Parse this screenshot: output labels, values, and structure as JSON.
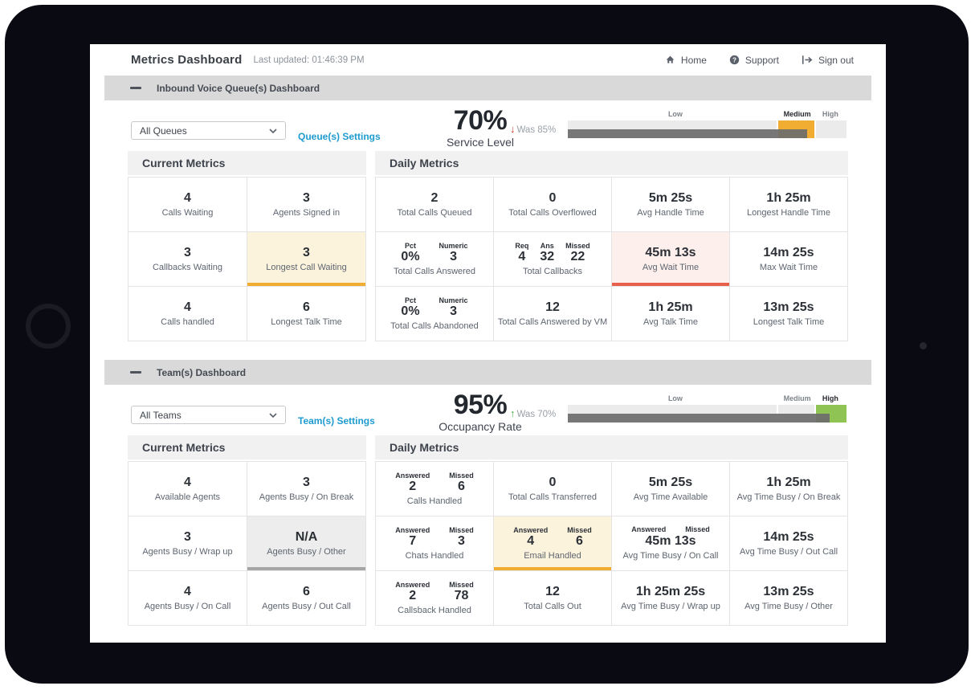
{
  "header": {
    "title": "Metrics Dashboard",
    "last_updated": "Last updated: 01:46:39 PM",
    "nav": [
      {
        "label": "Home",
        "icon": "home-icon"
      },
      {
        "label": "Support",
        "icon": "support-icon"
      },
      {
        "label": "Sign out",
        "icon": "sign-out-icon"
      }
    ]
  },
  "colors": {
    "accent_blue": "#1d9bd1",
    "amber": "#f0ad32",
    "amber_bg": "#fcf3dd",
    "red": "#e8604c",
    "red_bg": "#fdefec",
    "green": "#8fc353",
    "gray_hl": "#a6a6a6",
    "gray_bg": "#ededed",
    "gauge_bar": "#6c6c6c",
    "trend_down": "#d0402e",
    "trend_up": "#4aa546"
  },
  "sections": [
    {
      "id": "queues",
      "title": "Inbound Voice Queue(s) Dashboard",
      "selector_value": "All Queues",
      "settings_link": "Queue(s) Settings",
      "kpi": {
        "value": "70%",
        "direction": "down",
        "was": "Was 85%",
        "label": "Service Level"
      },
      "gauge": {
        "zones": [
          {
            "label": "Low",
            "width_pct": 75.8
          },
          {
            "label": "Medium",
            "width_pct": 13.2
          },
          {
            "label": "High",
            "width_pct": 11
          }
        ],
        "active_zone": "Medium",
        "active_color": "#f0ad32",
        "label_positions_pct": [
          38.6,
          82.3,
          94.2
        ],
        "progress_pct": 86
      },
      "current_metrics": {
        "title": "Current Metrics",
        "cells": [
          {
            "value": "4",
            "label": "Calls Waiting"
          },
          {
            "value": "3",
            "label": "Agents Signed in"
          },
          {
            "value": "3",
            "label": "Callbacks Waiting"
          },
          {
            "value": "3",
            "label": "Longest Call Waiting",
            "highlight": "amber"
          },
          {
            "value": "4",
            "label": "Calls handled"
          },
          {
            "value": "6",
            "label": "Longest Talk Time"
          }
        ]
      },
      "daily_metrics": {
        "title": "Daily Metrics",
        "cells": [
          {
            "value": "2",
            "label": "Total Calls Queued"
          },
          {
            "value": "0",
            "label": "Total Calls Overflowed"
          },
          {
            "value": "5m 25s",
            "label": "Avg Handle Time"
          },
          {
            "value": "1h 25m",
            "label": "Longest Handle Time"
          },
          {
            "pairs": [
              {
                "k": "Pct",
                "v": "0%"
              },
              {
                "k": "Numeric",
                "v": "3"
              }
            ],
            "label": "Total Calls Answered"
          },
          {
            "pairs": [
              {
                "k": "Req",
                "v": "4"
              },
              {
                "k": "Ans",
                "v": "32"
              },
              {
                "k": "Missed",
                "v": "22"
              }
            ],
            "label": "Total Callbacks"
          },
          {
            "value": "45m 13s",
            "label": "Avg Wait Time",
            "highlight": "red"
          },
          {
            "value": "14m 25s",
            "label": "Max Wait Time"
          },
          {
            "pairs": [
              {
                "k": "Pct",
                "v": "0%"
              },
              {
                "k": "Numeric",
                "v": "3"
              }
            ],
            "label": "Total Calls Abandoned"
          },
          {
            "value": "12",
            "label": "Total Calls Answered by VM"
          },
          {
            "value": "1h 25m",
            "label": "Avg Talk Time"
          },
          {
            "value": "13m 25s",
            "label": "Longest Talk Time"
          }
        ]
      }
    },
    {
      "id": "teams",
      "title": "Team(s) Dashboard",
      "selector_value": "All Teams",
      "settings_link": "Team(s) Settings",
      "kpi": {
        "value": "95%",
        "direction": "up",
        "was": "Was 70%",
        "label": "Occupancy Rate"
      },
      "gauge": {
        "zones": [
          {
            "label": "Low",
            "width_pct": 75.8
          },
          {
            "label": "Medium",
            "width_pct": 13.2
          },
          {
            "label": "High",
            "width_pct": 11
          }
        ],
        "active_zone": "High",
        "active_color": "#8fc353",
        "label_positions_pct": [
          38.6,
          82.3,
          94.2
        ],
        "progress_pct": 94
      },
      "current_metrics": {
        "title": "Current Metrics",
        "cells": [
          {
            "value": "4",
            "label": "Available Agents"
          },
          {
            "value": "3",
            "label": "Agents Busy / On Break"
          },
          {
            "value": "3",
            "label": "Agents Busy / Wrap up"
          },
          {
            "value": "N/A",
            "label": "Agents Busy / Other",
            "highlight": "gray"
          },
          {
            "value": "4",
            "label": "Agents Busy / On Call"
          },
          {
            "value": "6",
            "label": "Agents Busy / Out Call"
          }
        ]
      },
      "daily_metrics": {
        "title": "Daily Metrics",
        "cells": [
          {
            "pairs": [
              {
                "k": "Answered",
                "v": "2"
              },
              {
                "k": "Missed",
                "v": "6"
              }
            ],
            "label": "Calls Handled"
          },
          {
            "value": "0",
            "label": "Total Calls Transferred"
          },
          {
            "value": "5m 25s",
            "label": "Avg Time Available"
          },
          {
            "value": "1h 25m",
            "label": "Avg Time Busy / On Break"
          },
          {
            "pairs": [
              {
                "k": "Answered",
                "v": "7"
              },
              {
                "k": "Missed",
                "v": "3"
              }
            ],
            "label": "Chats Handled"
          },
          {
            "pairs": [
              {
                "k": "Answered",
                "v": "4"
              },
              {
                "k": "Missed",
                "v": "6"
              }
            ],
            "label": "Email Handled",
            "highlight": "amber"
          },
          {
            "pairs": [
              {
                "k": "Answered",
                "v": ""
              },
              {
                "k": "Missed",
                "v": ""
              }
            ],
            "value": "45m 13s",
            "label": "Avg Time Busy / On Call"
          },
          {
            "value": "14m 25s",
            "label": "Avg Time Busy / Out Call"
          },
          {
            "pairs": [
              {
                "k": "Answered",
                "v": "2"
              },
              {
                "k": "Missed",
                "v": "78"
              }
            ],
            "label": "Callsback Handled"
          },
          {
            "value": "12",
            "label": "Total Calls Out"
          },
          {
            "value": "1h 25m 25s",
            "label": "Avg Time Busy / Wrap up"
          },
          {
            "value": "13m 25s",
            "label": "Avg Time Busy / Other"
          }
        ]
      }
    }
  ]
}
